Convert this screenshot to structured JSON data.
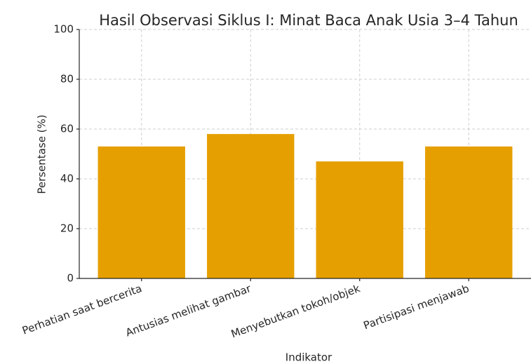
{
  "chart_data": {
    "type": "bar",
    "title": "Hasil Observasi Siklus I: Minat Baca Anak Usia 3–4 Tahun",
    "x_label": "Indikator",
    "y_label": "Persentase (%)",
    "categories": [
      "Perhatian saat bercerita",
      "Antusias melihat gambar",
      "Menyebutkan tokoh/objek",
      "Partisipasi menjawab"
    ],
    "values": [
      53,
      58,
      47,
      53
    ],
    "color": "#e69f00",
    "ylim": [
      0,
      100
    ],
    "yticks": [
      0,
      20,
      40,
      60,
      80,
      100
    ],
    "grid": true
  }
}
